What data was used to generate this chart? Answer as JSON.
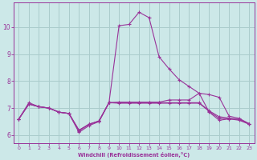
{
  "xlabel": "Windchill (Refroidissement éolien,°C)",
  "background_color": "#cce8e8",
  "grid_color": "#aacccc",
  "line_color": "#993399",
  "xlim": [
    -0.5,
    23.5
  ],
  "ylim": [
    5.7,
    10.9
  ],
  "yticks": [
    6,
    7,
    8,
    9,
    10
  ],
  "xticks": [
    0,
    1,
    2,
    3,
    4,
    5,
    6,
    7,
    8,
    9,
    10,
    11,
    12,
    13,
    14,
    15,
    16,
    17,
    18,
    19,
    20,
    21,
    22,
    23
  ],
  "lines": [
    {
      "x": [
        0,
        1,
        2,
        3,
        4,
        5,
        6,
        7,
        8,
        9,
        10,
        11,
        12,
        13,
        14,
        15,
        16,
        17,
        18,
        19,
        20,
        21,
        22,
        23
      ],
      "y": [
        6.6,
        7.2,
        7.05,
        7.0,
        6.85,
        6.8,
        6.1,
        6.35,
        6.5,
        7.2,
        10.05,
        10.1,
        10.55,
        10.35,
        8.9,
        8.45,
        8.05,
        7.8,
        7.55,
        6.85,
        6.55,
        6.6,
        6.55,
        6.4
      ]
    },
    {
      "x": [
        0,
        1,
        2,
        3,
        4,
        5,
        6,
        7,
        8,
        9,
        10,
        11,
        12,
        13,
        14,
        15,
        16,
        17,
        18,
        19,
        20,
        21,
        22,
        23
      ],
      "y": [
        6.6,
        7.15,
        7.05,
        7.0,
        6.85,
        6.8,
        6.15,
        6.4,
        6.52,
        7.2,
        7.22,
        7.22,
        7.22,
        7.22,
        7.22,
        7.3,
        7.3,
        7.3,
        7.55,
        7.5,
        7.4,
        6.7,
        6.62,
        6.42
      ]
    },
    {
      "x": [
        0,
        1,
        2,
        3,
        4,
        5,
        6,
        7,
        8,
        9,
        10,
        11,
        12,
        13,
        14,
        15,
        16,
        17,
        18,
        19,
        20,
        21,
        22,
        23
      ],
      "y": [
        6.6,
        7.15,
        7.05,
        7.0,
        6.85,
        6.8,
        6.18,
        6.4,
        6.52,
        7.2,
        7.2,
        7.2,
        7.2,
        7.2,
        7.2,
        7.2,
        7.2,
        7.2,
        7.2,
        6.9,
        6.68,
        6.63,
        6.58,
        6.42
      ]
    },
    {
      "x": [
        0,
        1,
        2,
        3,
        4,
        5,
        6,
        7,
        8,
        9,
        10,
        11,
        12,
        13,
        14,
        15,
        16,
        17,
        18,
        19,
        20,
        21,
        22,
        23
      ],
      "y": [
        6.6,
        7.15,
        7.05,
        7.0,
        6.85,
        6.8,
        6.18,
        6.4,
        6.52,
        7.2,
        7.18,
        7.18,
        7.18,
        7.18,
        7.18,
        7.18,
        7.18,
        7.18,
        7.18,
        6.88,
        6.62,
        6.6,
        6.58,
        6.42
      ]
    }
  ]
}
